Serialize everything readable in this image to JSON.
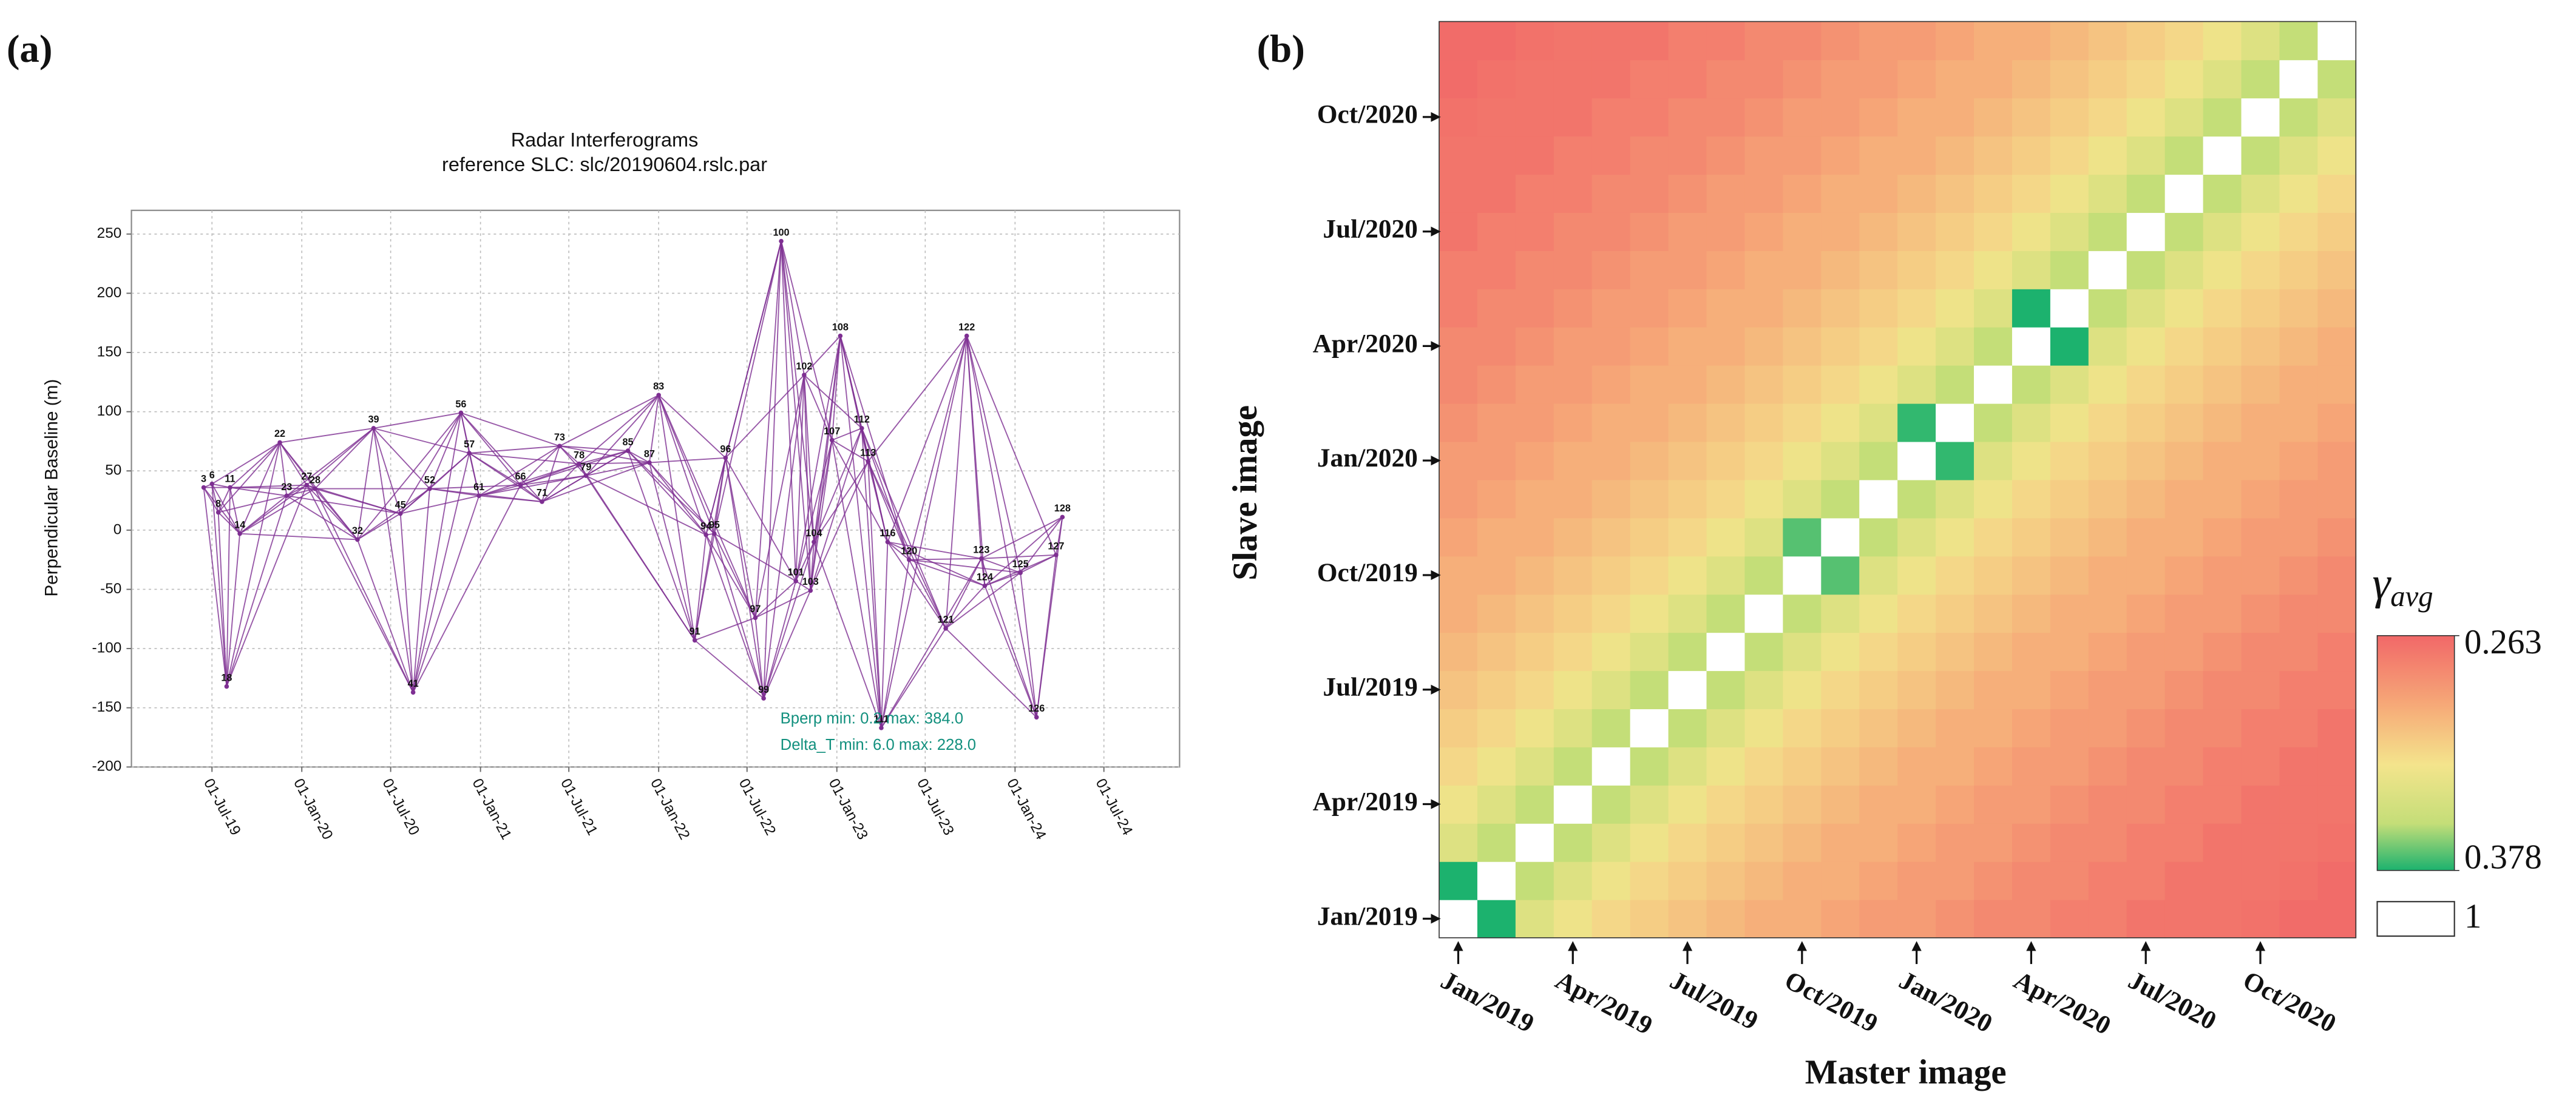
{
  "chart_data": [
    {
      "type": "network",
      "panel_label": "(a)",
      "title": "Radar Interferograms",
      "subtitle": "reference SLC: slc/20190604.rslc.par",
      "ylabel": "Perpendicular Baseline (m)",
      "color": "#7e2f92",
      "grid": true,
      "x": [
        "2019-06-14",
        "2019-07-01",
        "2019-07-14",
        "2019-07-31",
        "2019-08-07",
        "2019-08-27",
        "2019-11-17",
        "2019-12-01",
        "2020-01-11",
        "2020-01-28",
        "2020-04-24",
        "2020-05-27",
        "2020-07-21",
        "2020-08-16",
        "2020-09-19",
        "2020-11-22",
        "2020-12-09",
        "2020-12-29",
        "2021-03-24",
        "2021-05-07",
        "2021-06-12",
        "2021-07-22",
        "2021-08-05",
        "2021-10-30",
        "2021-12-13",
        "2022-01-01",
        "2022-03-16",
        "2022-04-08",
        "2022-04-25",
        "2022-05-18",
        "2022-07-18",
        "2022-08-04",
        "2022-09-09",
        "2022-10-09",
        "2022-10-26",
        "2022-11-08",
        "2022-11-15",
        "2022-12-22",
        "2023-01-08",
        "2023-02-21",
        "2023-03-06",
        "2023-04-02",
        "2023-04-15",
        "2023-05-29",
        "2023-08-12",
        "2023-09-24",
        "2023-10-24",
        "2023-10-31",
        "2024-01-12",
        "2024-02-14",
        "2024-03-25",
        "2024-04-07"
      ],
      "values": [
        36,
        39,
        15,
        -132,
        36,
        -3,
        74,
        29,
        38,
        35,
        -8,
        86,
        14,
        -137,
        35,
        99,
        65,
        29,
        38,
        24,
        71,
        56,
        46,
        67,
        57,
        114,
        -93,
        -4,
        -3,
        61,
        -74,
        -142,
        244,
        -43,
        131,
        -51,
        -10,
        76,
        164,
        86,
        58,
        -167,
        -10,
        -25,
        -83,
        164,
        -24,
        -47,
        -36,
        -158,
        -21,
        11
      ],
      "point_labels": [
        3,
        6,
        8,
        18,
        11,
        14,
        22,
        23,
        27,
        28,
        32,
        39,
        45,
        41,
        52,
        56,
        57,
        61,
        66,
        71,
        73,
        78,
        79,
        85,
        87,
        83,
        91,
        94,
        95,
        96,
        97,
        99,
        100,
        101,
        102,
        103,
        104,
        107,
        108,
        112,
        113,
        111,
        116,
        120,
        121,
        122,
        123,
        124,
        125,
        126,
        127,
        128
      ],
      "xlim": [
        "2019-01-17",
        "2024-12-03"
      ],
      "xticks": [
        {
          "value": "2019-07-01",
          "label": "01-Jul-19"
        },
        {
          "value": "2020-01-01",
          "label": "01-Jan-20"
        },
        {
          "value": "2020-07-01",
          "label": "01-Jul-20"
        },
        {
          "value": "2021-01-01",
          "label": "01-Jan-21"
        },
        {
          "value": "2021-07-01",
          "label": "01-Jul-21"
        },
        {
          "value": "2022-01-01",
          "label": "01-Jan-22"
        },
        {
          "value": "2022-07-01",
          "label": "01-Jul-22"
        },
        {
          "value": "2023-01-01",
          "label": "01-Jan-23"
        },
        {
          "value": "2023-07-01",
          "label": "01-Jul-23"
        },
        {
          "value": "2024-01-01",
          "label": "01-Jan-24"
        },
        {
          "value": "2024-07-01",
          "label": "01-Jul-24"
        }
      ],
      "ylim": [
        -200,
        270
      ],
      "yticks": [
        -200,
        -150,
        -100,
        -50,
        0,
        50,
        100,
        150,
        200,
        250
      ],
      "annotations": [
        "Bperp  min:  0.2 max: 384.0",
        "Delta_T  min:  6.0  max: 228.0"
      ],
      "annotation_color": "#12907e"
    },
    {
      "type": "heatmap",
      "panel_label": "(b)",
      "xlabel": "Master image",
      "ylabel": "Slave image",
      "categories": [
        "Jan/2019",
        null,
        null,
        "Apr/2019",
        null,
        null,
        "Jul/2019",
        null,
        null,
        "Oct/2019",
        null,
        null,
        "Jan/2020",
        null,
        null,
        "Apr/2020",
        null,
        null,
        "Jul/2020",
        null,
        null,
        "Oct/2020",
        null,
        null
      ],
      "y_categories": [
        "Jan/2019",
        null,
        null,
        "Apr/2019",
        null,
        null,
        "Jul/2019",
        null,
        null,
        "Oct/2019",
        null,
        null,
        "Jan/2020",
        null,
        null,
        "Apr/2020",
        null,
        null,
        "Jul/2020",
        null,
        null,
        "Oct/2020",
        null,
        null
      ],
      "colorbar_symbol": "γ",
      "colorbar_subscript": "avg",
      "clim": [
        0.263,
        0.378
      ],
      "colorbar_ticks": [
        0.263,
        0.378
      ],
      "blank_value": 1,
      "values": [
        [
          1,
          0.378,
          0.34,
          0.33,
          0.32,
          0.315,
          0.31,
          0.305,
          0.3,
          0.3,
          0.295,
          0.29,
          0.29,
          0.285,
          0.28,
          0.28,
          0.275,
          0.275,
          0.27,
          0.27,
          0.27,
          0.268,
          0.265,
          0.265
        ],
        [
          0.378,
          1,
          0.355,
          0.34,
          0.33,
          0.32,
          0.315,
          0.31,
          0.305,
          0.3,
          0.3,
          0.295,
          0.29,
          0.29,
          0.285,
          0.28,
          0.28,
          0.275,
          0.275,
          0.27,
          0.27,
          0.27,
          0.268,
          0.265
        ],
        [
          0.34,
          0.355,
          1,
          0.355,
          0.34,
          0.33,
          0.32,
          0.315,
          0.31,
          0.305,
          0.3,
          0.3,
          0.295,
          0.29,
          0.29,
          0.285,
          0.28,
          0.28,
          0.275,
          0.275,
          0.27,
          0.27,
          0.27,
          0.268
        ],
        [
          0.33,
          0.34,
          0.355,
          1,
          0.355,
          0.34,
          0.33,
          0.32,
          0.315,
          0.31,
          0.305,
          0.3,
          0.3,
          0.295,
          0.29,
          0.29,
          0.285,
          0.28,
          0.28,
          0.275,
          0.275,
          0.27,
          0.27,
          0.27
        ],
        [
          0.32,
          0.33,
          0.34,
          0.355,
          1,
          0.355,
          0.34,
          0.33,
          0.32,
          0.315,
          0.31,
          0.305,
          0.3,
          0.3,
          0.295,
          0.29,
          0.29,
          0.285,
          0.28,
          0.28,
          0.275,
          0.275,
          0.27,
          0.27
        ],
        [
          0.315,
          0.32,
          0.33,
          0.34,
          0.355,
          1,
          0.355,
          0.34,
          0.33,
          0.32,
          0.315,
          0.31,
          0.305,
          0.3,
          0.3,
          0.295,
          0.29,
          0.29,
          0.285,
          0.28,
          0.28,
          0.275,
          0.275,
          0.27
        ],
        [
          0.31,
          0.315,
          0.32,
          0.33,
          0.34,
          0.355,
          1,
          0.355,
          0.34,
          0.33,
          0.32,
          0.315,
          0.31,
          0.305,
          0.3,
          0.3,
          0.295,
          0.29,
          0.29,
          0.285,
          0.28,
          0.28,
          0.275,
          0.275
        ],
        [
          0.305,
          0.31,
          0.315,
          0.32,
          0.33,
          0.34,
          0.355,
          1,
          0.355,
          0.34,
          0.33,
          0.32,
          0.315,
          0.31,
          0.305,
          0.3,
          0.3,
          0.295,
          0.29,
          0.29,
          0.285,
          0.28,
          0.28,
          0.275
        ],
        [
          0.3,
          0.305,
          0.31,
          0.315,
          0.32,
          0.33,
          0.34,
          0.355,
          1,
          0.355,
          0.34,
          0.33,
          0.32,
          0.315,
          0.31,
          0.305,
          0.3,
          0.3,
          0.295,
          0.29,
          0.29,
          0.285,
          0.28,
          0.28
        ],
        [
          0.3,
          0.3,
          0.305,
          0.31,
          0.315,
          0.32,
          0.33,
          0.34,
          0.355,
          1,
          0.37,
          0.34,
          0.33,
          0.32,
          0.315,
          0.31,
          0.305,
          0.3,
          0.3,
          0.295,
          0.29,
          0.29,
          0.285,
          0.28
        ],
        [
          0.295,
          0.3,
          0.3,
          0.305,
          0.31,
          0.315,
          0.32,
          0.33,
          0.34,
          0.37,
          1,
          0.355,
          0.34,
          0.33,
          0.32,
          0.315,
          0.31,
          0.305,
          0.3,
          0.3,
          0.295,
          0.29,
          0.29,
          0.285
        ],
        [
          0.29,
          0.295,
          0.3,
          0.3,
          0.305,
          0.31,
          0.315,
          0.32,
          0.33,
          0.34,
          0.355,
          1,
          0.355,
          0.34,
          0.33,
          0.32,
          0.315,
          0.31,
          0.305,
          0.3,
          0.3,
          0.295,
          0.29,
          0.29
        ],
        [
          0.29,
          0.29,
          0.295,
          0.3,
          0.3,
          0.305,
          0.31,
          0.315,
          0.32,
          0.33,
          0.34,
          0.355,
          1,
          0.375,
          0.34,
          0.33,
          0.32,
          0.315,
          0.31,
          0.305,
          0.3,
          0.3,
          0.295,
          0.29
        ],
        [
          0.285,
          0.29,
          0.29,
          0.295,
          0.3,
          0.3,
          0.305,
          0.31,
          0.315,
          0.32,
          0.33,
          0.34,
          0.375,
          1,
          0.355,
          0.34,
          0.33,
          0.32,
          0.315,
          0.31,
          0.305,
          0.3,
          0.3,
          0.295
        ],
        [
          0.28,
          0.285,
          0.29,
          0.29,
          0.295,
          0.3,
          0.3,
          0.305,
          0.31,
          0.315,
          0.32,
          0.33,
          0.34,
          0.355,
          1,
          0.355,
          0.34,
          0.33,
          0.32,
          0.315,
          0.31,
          0.305,
          0.3,
          0.3
        ],
        [
          0.28,
          0.28,
          0.285,
          0.29,
          0.29,
          0.295,
          0.3,
          0.3,
          0.305,
          0.31,
          0.315,
          0.32,
          0.33,
          0.34,
          0.355,
          1,
          0.378,
          0.34,
          0.33,
          0.32,
          0.315,
          0.31,
          0.305,
          0.3
        ],
        [
          0.275,
          0.28,
          0.28,
          0.285,
          0.29,
          0.29,
          0.295,
          0.3,
          0.3,
          0.305,
          0.31,
          0.315,
          0.32,
          0.33,
          0.34,
          0.378,
          1,
          0.355,
          0.34,
          0.33,
          0.32,
          0.315,
          0.31,
          0.305
        ],
        [
          0.275,
          0.275,
          0.28,
          0.28,
          0.285,
          0.29,
          0.29,
          0.295,
          0.3,
          0.3,
          0.305,
          0.31,
          0.315,
          0.32,
          0.33,
          0.34,
          0.355,
          1,
          0.355,
          0.34,
          0.33,
          0.32,
          0.315,
          0.31
        ],
        [
          0.27,
          0.275,
          0.275,
          0.28,
          0.28,
          0.285,
          0.29,
          0.29,
          0.295,
          0.3,
          0.3,
          0.305,
          0.31,
          0.315,
          0.32,
          0.33,
          0.34,
          0.355,
          1,
          0.355,
          0.34,
          0.33,
          0.32,
          0.315
        ],
        [
          0.27,
          0.27,
          0.275,
          0.275,
          0.28,
          0.28,
          0.285,
          0.29,
          0.29,
          0.295,
          0.3,
          0.3,
          0.305,
          0.31,
          0.315,
          0.32,
          0.33,
          0.34,
          0.355,
          1,
          0.355,
          0.34,
          0.33,
          0.32
        ],
        [
          0.27,
          0.27,
          0.27,
          0.275,
          0.275,
          0.28,
          0.28,
          0.285,
          0.29,
          0.29,
          0.295,
          0.3,
          0.3,
          0.305,
          0.31,
          0.315,
          0.32,
          0.33,
          0.34,
          0.355,
          1,
          0.355,
          0.34,
          0.33
        ],
        [
          0.268,
          0.27,
          0.27,
          0.27,
          0.275,
          0.275,
          0.28,
          0.28,
          0.285,
          0.29,
          0.29,
          0.295,
          0.3,
          0.3,
          0.305,
          0.31,
          0.315,
          0.32,
          0.33,
          0.34,
          0.355,
          1,
          0.355,
          0.34
        ],
        [
          0.265,
          0.268,
          0.27,
          0.27,
          0.27,
          0.275,
          0.275,
          0.28,
          0.28,
          0.285,
          0.29,
          0.29,
          0.295,
          0.3,
          0.3,
          0.305,
          0.31,
          0.315,
          0.32,
          0.33,
          0.34,
          0.355,
          1,
          0.355
        ],
        [
          0.265,
          0.265,
          0.268,
          0.27,
          0.27,
          0.27,
          0.275,
          0.275,
          0.28,
          0.28,
          0.285,
          0.29,
          0.29,
          0.295,
          0.3,
          0.3,
          0.305,
          0.31,
          0.315,
          0.32,
          0.33,
          0.34,
          0.355,
          1
        ]
      ]
    }
  ]
}
